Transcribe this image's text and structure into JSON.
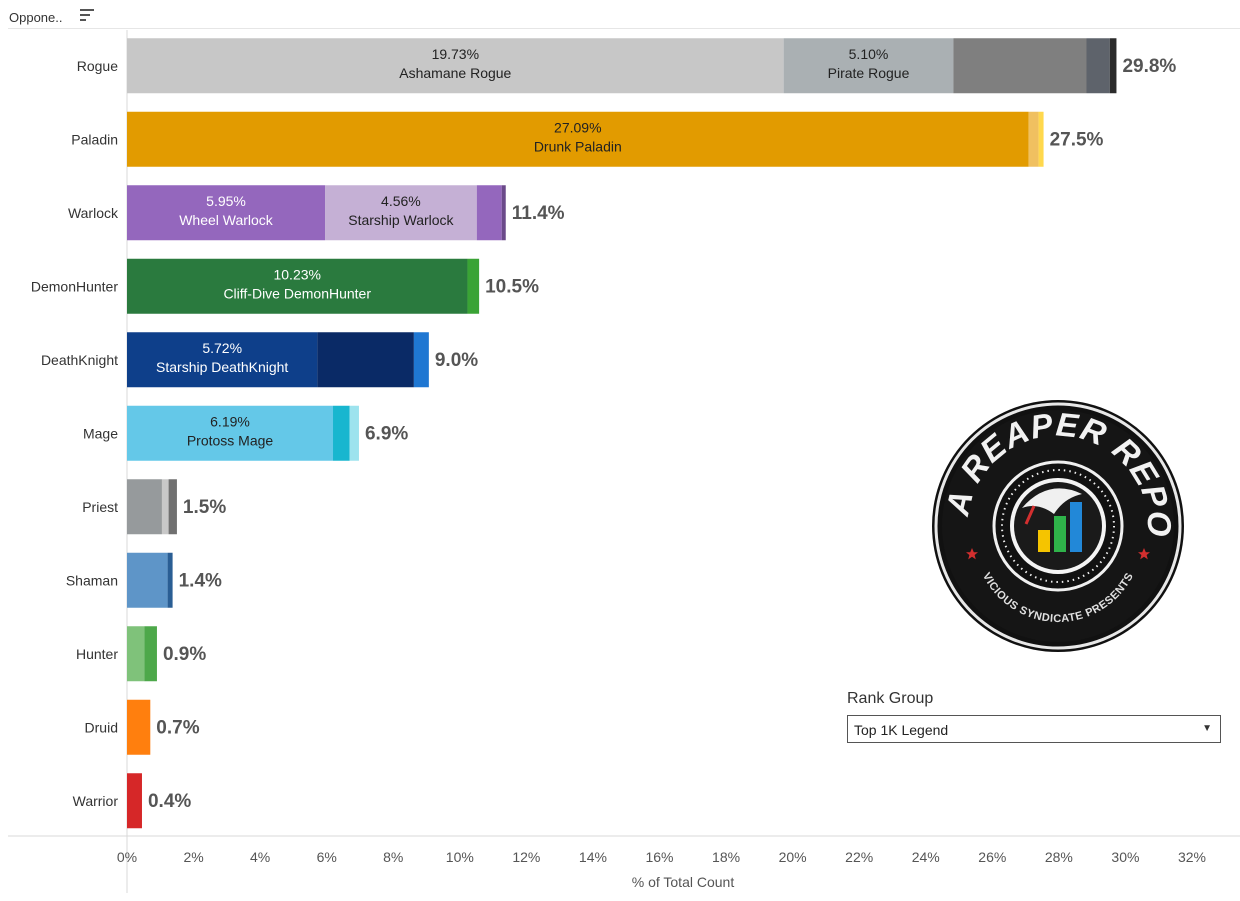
{
  "header": {
    "label": "Oppone.."
  },
  "chart_data": {
    "type": "bar",
    "orientation": "horizontal",
    "stacked": true,
    "categories": [
      "Rogue",
      "Paladin",
      "Warlock",
      "DemonHunter",
      "DeathKnight",
      "Mage",
      "Priest",
      "Shaman",
      "Hunter",
      "Druid",
      "Warrior"
    ],
    "totals": [
      "29.8%",
      "27.5%",
      "11.4%",
      "10.5%",
      "9.0%",
      "6.9%",
      "1.5%",
      "1.4%",
      "0.9%",
      "0.7%",
      "0.4%"
    ],
    "bars": [
      {
        "category": "Rogue",
        "segments": [
          {
            "value": 19.73,
            "color": "#c7c7c7",
            "pct_label": "19.73%",
            "name": "Ashamane Rogue",
            "text_color": "#222"
          },
          {
            "value": 5.1,
            "color": "#aab0b3",
            "pct_label": "5.10%",
            "name": "Pirate Rogue",
            "text_color": "#222"
          },
          {
            "value": 4.0,
            "color": "#7f7f7f"
          },
          {
            "value": 0.7,
            "color": "#5e636b"
          },
          {
            "value": 0.2,
            "color": "#2b2b2b"
          }
        ]
      },
      {
        "category": "Paladin",
        "segments": [
          {
            "value": 27.09,
            "color": "#e29b00",
            "pct_label": "27.09%",
            "name": "Drunk Paladin",
            "text_color": "#222"
          },
          {
            "value": 0.3,
            "color": "#f0c060"
          },
          {
            "value": 0.15,
            "color": "#ffd84d"
          }
        ]
      },
      {
        "category": "Warlock",
        "segments": [
          {
            "value": 5.95,
            "color": "#9467bd",
            "pct_label": "5.95%",
            "name": "Wheel Warlock",
            "text_color": "#ffffff"
          },
          {
            "value": 4.56,
            "color": "#c5b0d5",
            "pct_label": "4.56%",
            "name": "Starship Warlock",
            "text_color": "#222"
          },
          {
            "value": 0.75,
            "color": "#9467bd"
          },
          {
            "value": 0.12,
            "color": "#6b4a8a"
          }
        ]
      },
      {
        "category": "DemonHunter",
        "segments": [
          {
            "value": 10.23,
            "color": "#2a7a3e",
            "pct_label": "10.23%",
            "name": "Cliff-Dive DemonHunter",
            "text_color": "#ffffff"
          },
          {
            "value": 0.35,
            "color": "#3aa335"
          }
        ]
      },
      {
        "category": "DeathKnight",
        "segments": [
          {
            "value": 5.72,
            "color": "#0e3f8a",
            "pct_label": "5.72%",
            "name": "Starship DeathKnight",
            "text_color": "#ffffff"
          },
          {
            "value": 2.9,
            "color": "#0a2a66"
          },
          {
            "value": 0.45,
            "color": "#1f77d2"
          }
        ]
      },
      {
        "category": "Mage",
        "segments": [
          {
            "value": 6.19,
            "color": "#64c8e8",
            "pct_label": "6.19%",
            "name": "Protoss Mage",
            "text_color": "#222"
          },
          {
            "value": 0.5,
            "color": "#18b6cf"
          },
          {
            "value": 0.28,
            "color": "#9de3ee"
          }
        ]
      },
      {
        "category": "Priest",
        "segments": [
          {
            "value": 1.05,
            "color": "#969a9c"
          },
          {
            "value": 0.2,
            "color": "#c8c8c8"
          },
          {
            "value": 0.25,
            "color": "#707070"
          }
        ]
      },
      {
        "category": "Shaman",
        "segments": [
          {
            "value": 1.22,
            "color": "#5e95c8"
          },
          {
            "value": 0.15,
            "color": "#2a5e94"
          }
        ]
      },
      {
        "category": "Hunter",
        "segments": [
          {
            "value": 0.52,
            "color": "#7fc27a"
          },
          {
            "value": 0.38,
            "color": "#4da84a"
          }
        ]
      },
      {
        "category": "Druid",
        "segments": [
          {
            "value": 0.7,
            "color": "#ff7f0e"
          }
        ]
      },
      {
        "category": "Warrior",
        "segments": [
          {
            "value": 0.45,
            "color": "#d62728"
          }
        ]
      }
    ],
    "xlim": [
      0,
      32
    ],
    "xticks": [
      0,
      2,
      4,
      6,
      8,
      10,
      12,
      14,
      16,
      18,
      20,
      22,
      24,
      26,
      28,
      30,
      32
    ],
    "xtick_labels": [
      "0%",
      "2%",
      "4%",
      "6%",
      "8%",
      "10%",
      "12%",
      "14%",
      "16%",
      "18%",
      "20%",
      "22%",
      "24%",
      "26%",
      "28%",
      "30%",
      "32%"
    ],
    "xlabel": "% of Total Count",
    "grid": false
  },
  "logo": {
    "title": "DATA REAPER REPORT",
    "subtitle": "VICIOUS SYNDICATE PRESENTS",
    "colors": {
      "yellow": "#f5c400",
      "green": "#2fb34a",
      "blue": "#2288d8",
      "star": "#d32f2f"
    }
  },
  "filter": {
    "label": "Rank Group",
    "selected": "Top 1K Legend"
  }
}
